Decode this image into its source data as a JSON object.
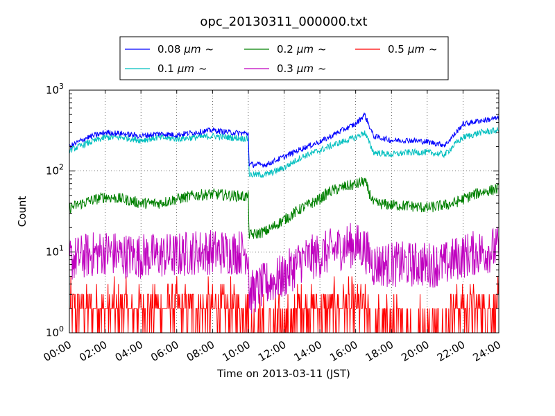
{
  "chart_data": {
    "type": "line",
    "title": "opc_20130311_000000.txt",
    "xlabel": "Time on 2013-03-11 (JST)",
    "ylabel": "Count",
    "yscale": "log",
    "ylim": [
      1,
      1000
    ],
    "xlim": [
      "00:00",
      "24:00"
    ],
    "xticks": [
      "00:00",
      "02:00",
      "04:00",
      "06:00",
      "08:00",
      "10:00",
      "12:00",
      "14:00",
      "16:00",
      "18:00",
      "20:00",
      "22:00",
      "24:00"
    ],
    "yticks": [
      {
        "value": 1,
        "base": "10",
        "exp": "0"
      },
      {
        "value": 10,
        "base": "10",
        "exp": "1"
      },
      {
        "value": 100,
        "base": "10",
        "exp": "2"
      },
      {
        "value": 1000,
        "base": "10",
        "exp": "3"
      }
    ],
    "grid": true,
    "legend_position": "top-center",
    "x_hours": [
      0,
      1,
      2,
      3,
      4,
      5,
      6,
      7,
      8,
      9,
      10,
      10.05,
      11,
      12,
      13,
      14,
      14.5,
      15,
      15.5,
      16,
      16.5,
      17,
      18,
      19,
      20,
      21,
      21.5,
      22,
      23,
      24
    ],
    "series": [
      {
        "name": "0.08 µm ~",
        "label_unit": "µm",
        "label_prefix": "0.08",
        "color": "#0000ff",
        "values": [
          200,
          260,
          300,
          290,
          270,
          290,
          280,
          300,
          320,
          300,
          290,
          120,
          120,
          150,
          190,
          230,
          260,
          300,
          340,
          380,
          500,
          270,
          240,
          240,
          230,
          210,
          280,
          380,
          420,
          450
        ]
      },
      {
        "name": "0.1 µm ~",
        "label_unit": "µm",
        "label_prefix": "0.1",
        "color": "#00bfbf",
        "values": [
          180,
          220,
          260,
          260,
          240,
          260,
          250,
          260,
          270,
          260,
          250,
          90,
          90,
          110,
          150,
          180,
          200,
          220,
          240,
          260,
          300,
          170,
          160,
          170,
          170,
          160,
          210,
          260,
          300,
          320
        ]
      },
      {
        "name": "0.2 µm ~",
        "label_unit": "µm",
        "label_prefix": "0.2",
        "color": "#008000",
        "values": [
          35,
          42,
          48,
          45,
          40,
          40,
          45,
          50,
          52,
          50,
          48,
          16,
          18,
          25,
          35,
          45,
          55,
          60,
          65,
          68,
          75,
          40,
          38,
          37,
          35,
          38,
          40,
          45,
          55,
          60
        ]
      },
      {
        "name": "0.3 µm ~",
        "label_unit": "µm",
        "label_prefix": "0.3",
        "color": "#bf00bf",
        "values": [
          8,
          9,
          10,
          9,
          9,
          9,
          9,
          10,
          10,
          10,
          10,
          3,
          4,
          5,
          8,
          9,
          10,
          11,
          12,
          12,
          11,
          7,
          7,
          7,
          7,
          7,
          8,
          9,
          10,
          11
        ]
      },
      {
        "name": "0.5 µm ~",
        "label_unit": "µm",
        "label_prefix": "0.5",
        "color": "#ff0000",
        "values": [
          2,
          2,
          2,
          2,
          2,
          2,
          2,
          2,
          2,
          2,
          2,
          1,
          1,
          1,
          2,
          2,
          2,
          2,
          2,
          2,
          2,
          1,
          1,
          1,
          1,
          1,
          2,
          2,
          2,
          2
        ]
      }
    ]
  }
}
